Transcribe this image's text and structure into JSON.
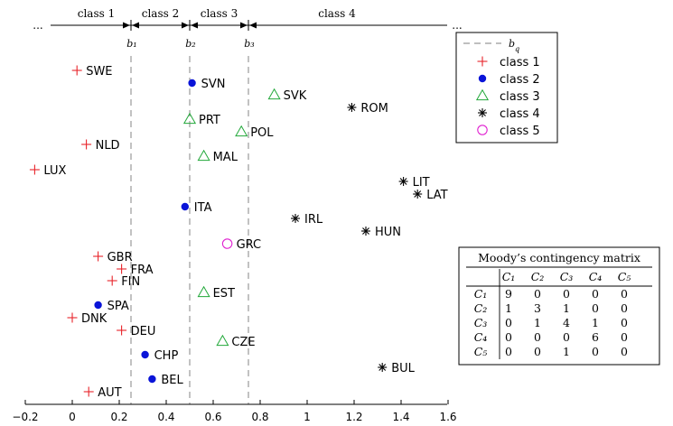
{
  "chart_data": {
    "type": "scatter",
    "xlim": [
      -0.2,
      1.6
    ],
    "x_ticks": [
      "−0.2",
      "0",
      "0.2",
      "0.4",
      "0.6",
      "0.8",
      "1",
      "1.2",
      "1.4",
      "1.6"
    ],
    "x_tick_values": [
      -0.2,
      0,
      0.2,
      0.4,
      0.6,
      0.8,
      1.0,
      1.2,
      1.4,
      1.6
    ],
    "grid": false,
    "boundaries": [
      {
        "label": "b₁",
        "x": 0.25
      },
      {
        "label": "b₂",
        "x": 0.5
      },
      {
        "label": "b₃",
        "x": 0.75
      }
    ],
    "class_bands": [
      {
        "label": "class 1",
        "from": "left-open",
        "to_x": 0.25
      },
      {
        "label": "class 2",
        "from_x": 0.25,
        "to_x": 0.5
      },
      {
        "label": "class 3",
        "from_x": 0.5,
        "to_x": 0.75
      },
      {
        "label": "class 4",
        "from_x": 0.75,
        "to": "right-open"
      }
    ],
    "dots_left": "...",
    "dots_right": "...",
    "legend": {
      "placement": "top-right",
      "boundary_label": "b_q",
      "entries": [
        {
          "label": "class 1",
          "marker": "plus",
          "color": "#e8242a"
        },
        {
          "label": "class 2",
          "marker": "dot",
          "color": "#0a14d8"
        },
        {
          "label": "class 3",
          "marker": "triangle",
          "color": "#22a83a"
        },
        {
          "label": "class 4",
          "marker": "star",
          "color": "#000000"
        },
        {
          "label": "class 5",
          "marker": "circle",
          "color": "#e020d0"
        }
      ]
    },
    "points": [
      {
        "name": "SWE",
        "x": 0.02,
        "cls": 1
      },
      {
        "name": "NLD",
        "x": 0.06,
        "cls": 1
      },
      {
        "name": "LUX",
        "x": -0.16,
        "cls": 1
      },
      {
        "name": "GBR",
        "x": 0.11,
        "cls": 1
      },
      {
        "name": "FRA",
        "x": 0.21,
        "cls": 1
      },
      {
        "name": "FIN",
        "x": 0.17,
        "cls": 1
      },
      {
        "name": "DNK",
        "x": 0.0,
        "cls": 1
      },
      {
        "name": "DEU",
        "x": 0.21,
        "cls": 1
      },
      {
        "name": "AUT",
        "x": 0.07,
        "cls": 1
      },
      {
        "name": "SVN",
        "x": 0.51,
        "cls": 2
      },
      {
        "name": "ITA",
        "x": 0.48,
        "cls": 2
      },
      {
        "name": "SPA",
        "x": 0.11,
        "cls": 2
      },
      {
        "name": "CHP",
        "x": 0.31,
        "cls": 2
      },
      {
        "name": "BEL",
        "x": 0.34,
        "cls": 2
      },
      {
        "name": "SVK",
        "x": 0.86,
        "cls": 3
      },
      {
        "name": "PRT",
        "x": 0.5,
        "cls": 3
      },
      {
        "name": "POL",
        "x": 0.72,
        "cls": 3
      },
      {
        "name": "MAL",
        "x": 0.56,
        "cls": 3
      },
      {
        "name": "EST",
        "x": 0.56,
        "cls": 3
      },
      {
        "name": "CZE",
        "x": 0.64,
        "cls": 3
      },
      {
        "name": "ROM",
        "x": 1.19,
        "cls": 4
      },
      {
        "name": "LIT",
        "x": 1.41,
        "cls": 4
      },
      {
        "name": "LAT",
        "x": 1.47,
        "cls": 4
      },
      {
        "name": "IRL",
        "x": 0.95,
        "cls": 4
      },
      {
        "name": "HUN",
        "x": 1.25,
        "cls": 4
      },
      {
        "name": "BUL",
        "x": 1.32,
        "cls": 4
      },
      {
        "name": "GRC",
        "x": 0.66,
        "cls": 5
      }
    ],
    "contingency_matrix": {
      "title": "Moody’s contingency matrix",
      "col_headers": [
        "C₁",
        "C₂",
        "C₃",
        "C₄",
        "C₅"
      ],
      "row_headers": [
        "C₁",
        "C₂",
        "C₃",
        "C₄",
        "C₅"
      ],
      "rows": [
        [
          "9",
          "0",
          "0",
          "0",
          "0"
        ],
        [
          "1",
          "3",
          "1",
          "0",
          "0"
        ],
        [
          "0",
          "1",
          "4",
          "1",
          "0"
        ],
        [
          "0",
          "0",
          "0",
          "6",
          "0"
        ],
        [
          "0",
          "0",
          "1",
          "0",
          "0"
        ]
      ]
    }
  }
}
